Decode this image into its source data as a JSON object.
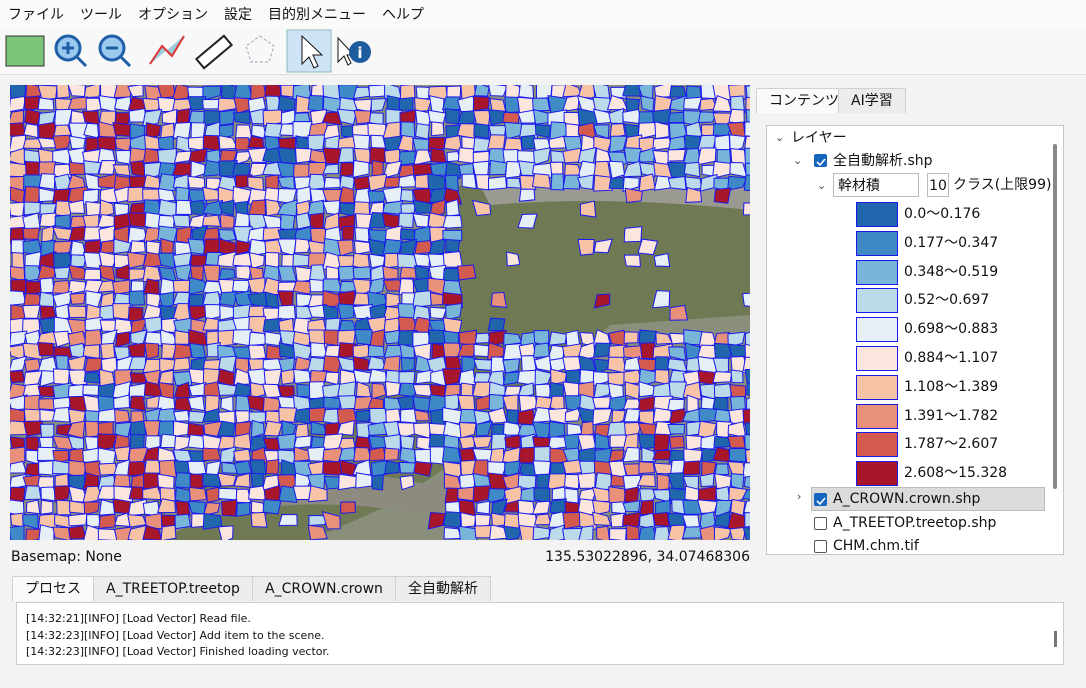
{
  "menu": [
    "ファイル",
    "ツール",
    "オプション",
    "設定",
    "目的別メニュー",
    "ヘルプ"
  ],
  "panel_tabs": [
    "コンテンツ",
    "AI学習"
  ],
  "tree": {
    "root": "レイヤー",
    "layers": [
      {
        "name": "全自動解析.shp",
        "checked": true,
        "field": "幹材積",
        "classes": "10",
        "class_label": "クラス(上限99)",
        "legend": [
          {
            "label": "0.0～0.176",
            "color": "#2166ac"
          },
          {
            "label": "0.177～0.347",
            "color": "#3f8ac6"
          },
          {
            "label": "0.348～0.519",
            "color": "#79b5d9"
          },
          {
            "label": "0.52～0.697",
            "color": "#bcdaea"
          },
          {
            "label": "0.698～0.883",
            "color": "#e6eef6"
          },
          {
            "label": "0.884～1.107",
            "color": "#fbe6de"
          },
          {
            "label": "1.108～1.389",
            "color": "#f7c3a7"
          },
          {
            "label": "1.391～1.782",
            "color": "#e9907a"
          },
          {
            "label": "1.787～2.607",
            "color": "#d35a4f"
          },
          {
            "label": "2.608～15.328",
            "color": "#a8162b"
          }
        ]
      },
      {
        "name": "A_CROWN.crown.shp",
        "checked": true,
        "selected": true
      },
      {
        "name": "A_TREETOP.treetop.shp",
        "checked": false
      },
      {
        "name": "CHM.chm.tif",
        "checked": false
      }
    ]
  },
  "status": {
    "basemap": "Basemap: None",
    "coords": "135.53022896, 34.07468306"
  },
  "bottom_tabs": [
    "プロセス",
    "A_TREETOP.treetop",
    "A_CROWN.crown",
    "全自動解析"
  ],
  "log": [
    "[14:32:21][INFO] [Load Vector] Read file.",
    "[14:32:23][INFO] [Load Vector] Add item to the scene.",
    "[14:32:23][INFO] [Load Vector] Finished loading vector."
  ]
}
